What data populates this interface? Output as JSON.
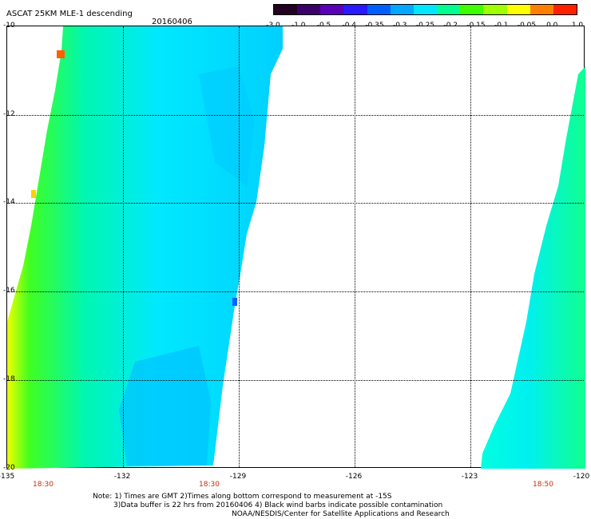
{
  "title": "ASCAT 25KM MLE-1 descending",
  "date": "20160406",
  "colorbar": {
    "labels": [
      "-3.0",
      "-1.0",
      "-0.5",
      "-0.4",
      "-0.35",
      "-0.3",
      "-0.25",
      "-0.2",
      "-0.15",
      "-0.1",
      "-0.05",
      "0.0",
      "1.0"
    ],
    "colors": [
      "#220022",
      "#3a006a",
      "#5a00b8",
      "#2a1aff",
      "#0060ff",
      "#00a8ff",
      "#00e6ff",
      "#00ff90",
      "#40ff00",
      "#a0ff00",
      "#ffff00",
      "#ff8000",
      "#ff2000"
    ]
  },
  "axes": {
    "lat_labels": [
      "-10",
      "-12",
      "-14",
      "-16",
      "-18",
      "-20"
    ],
    "lon_labels": [
      "-135",
      "-132",
      "-129",
      "-126",
      "-123",
      "-120"
    ]
  },
  "times": [
    "18:30",
    "18:30",
    "18:50"
  ],
  "notes": [
    "Note: 1) Times are GMT 2)Times along bottom correspond to measurement at -15S",
    "3)Data buffer is 22 hrs from 20160406 4) Black wind barbs indicate possible contamination",
    "NOAA/NESDIS/Center for Satellite Applications and Research"
  ]
}
